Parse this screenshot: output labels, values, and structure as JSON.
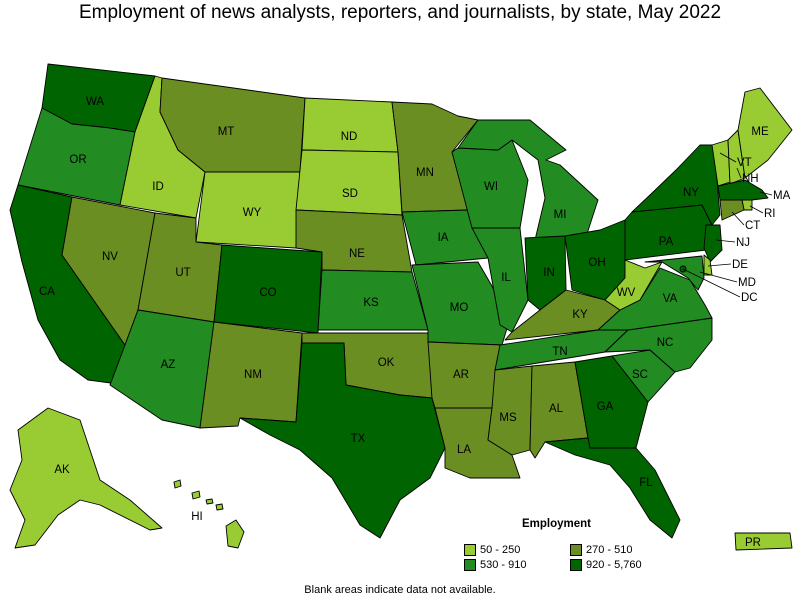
{
  "title": "Employment of news analysts, reporters, and journalists, by state, May 2022",
  "legend": {
    "title": "Employment",
    "items": [
      {
        "label": "50 - 250",
        "color": "#99cc33"
      },
      {
        "label": "270 - 510",
        "color": "#6b8e23"
      },
      {
        "label": "530 - 910",
        "color": "#228b22"
      },
      {
        "label": "920 - 5,760",
        "color": "#006400"
      }
    ]
  },
  "footnote": "Blank areas indicate data not available.",
  "states": [
    {
      "abbr": "WA",
      "class": 3
    },
    {
      "abbr": "OR",
      "class": 2
    },
    {
      "abbr": "CA",
      "class": 3
    },
    {
      "abbr": "ID",
      "class": 0
    },
    {
      "abbr": "NV",
      "class": 1
    },
    {
      "abbr": "MT",
      "class": 1
    },
    {
      "abbr": "WY",
      "class": 0
    },
    {
      "abbr": "UT",
      "class": 1
    },
    {
      "abbr": "AZ",
      "class": 2
    },
    {
      "abbr": "CO",
      "class": 3
    },
    {
      "abbr": "NM",
      "class": 1
    },
    {
      "abbr": "ND",
      "class": 0
    },
    {
      "abbr": "SD",
      "class": 0
    },
    {
      "abbr": "NE",
      "class": 1
    },
    {
      "abbr": "KS",
      "class": 2
    },
    {
      "abbr": "OK",
      "class": 1
    },
    {
      "abbr": "TX",
      "class": 3
    },
    {
      "abbr": "MN",
      "class": 1
    },
    {
      "abbr": "IA",
      "class": 2
    },
    {
      "abbr": "MO",
      "class": 2
    },
    {
      "abbr": "AR",
      "class": 1
    },
    {
      "abbr": "LA",
      "class": 1
    },
    {
      "abbr": "WI",
      "class": 2
    },
    {
      "abbr": "IL",
      "class": 2
    },
    {
      "abbr": "MI",
      "class": 2
    },
    {
      "abbr": "IN",
      "class": 3
    },
    {
      "abbr": "OH",
      "class": 3
    },
    {
      "abbr": "KY",
      "class": 1
    },
    {
      "abbr": "TN",
      "class": 2
    },
    {
      "abbr": "MS",
      "class": 1
    },
    {
      "abbr": "AL",
      "class": 1
    },
    {
      "abbr": "GA",
      "class": 3
    },
    {
      "abbr": "FL",
      "class": 3
    },
    {
      "abbr": "SC",
      "class": 2
    },
    {
      "abbr": "NC",
      "class": 2
    },
    {
      "abbr": "VA",
      "class": 2
    },
    {
      "abbr": "WV",
      "class": 0
    },
    {
      "abbr": "PA",
      "class": 3
    },
    {
      "abbr": "NY",
      "class": 3
    },
    {
      "abbr": "VT",
      "class": 0
    },
    {
      "abbr": "NH",
      "class": 0
    },
    {
      "abbr": "ME",
      "class": 0
    },
    {
      "abbr": "MA",
      "class": 3
    },
    {
      "abbr": "RI",
      "class": 0
    },
    {
      "abbr": "CT",
      "class": 1
    },
    {
      "abbr": "NJ",
      "class": 3
    },
    {
      "abbr": "DE",
      "class": 0
    },
    {
      "abbr": "MD",
      "class": 2
    },
    {
      "abbr": "DC",
      "class": 3
    },
    {
      "abbr": "AK",
      "class": 0
    },
    {
      "abbr": "HI",
      "class": 0
    },
    {
      "abbr": "PR",
      "class": 0
    }
  ]
}
